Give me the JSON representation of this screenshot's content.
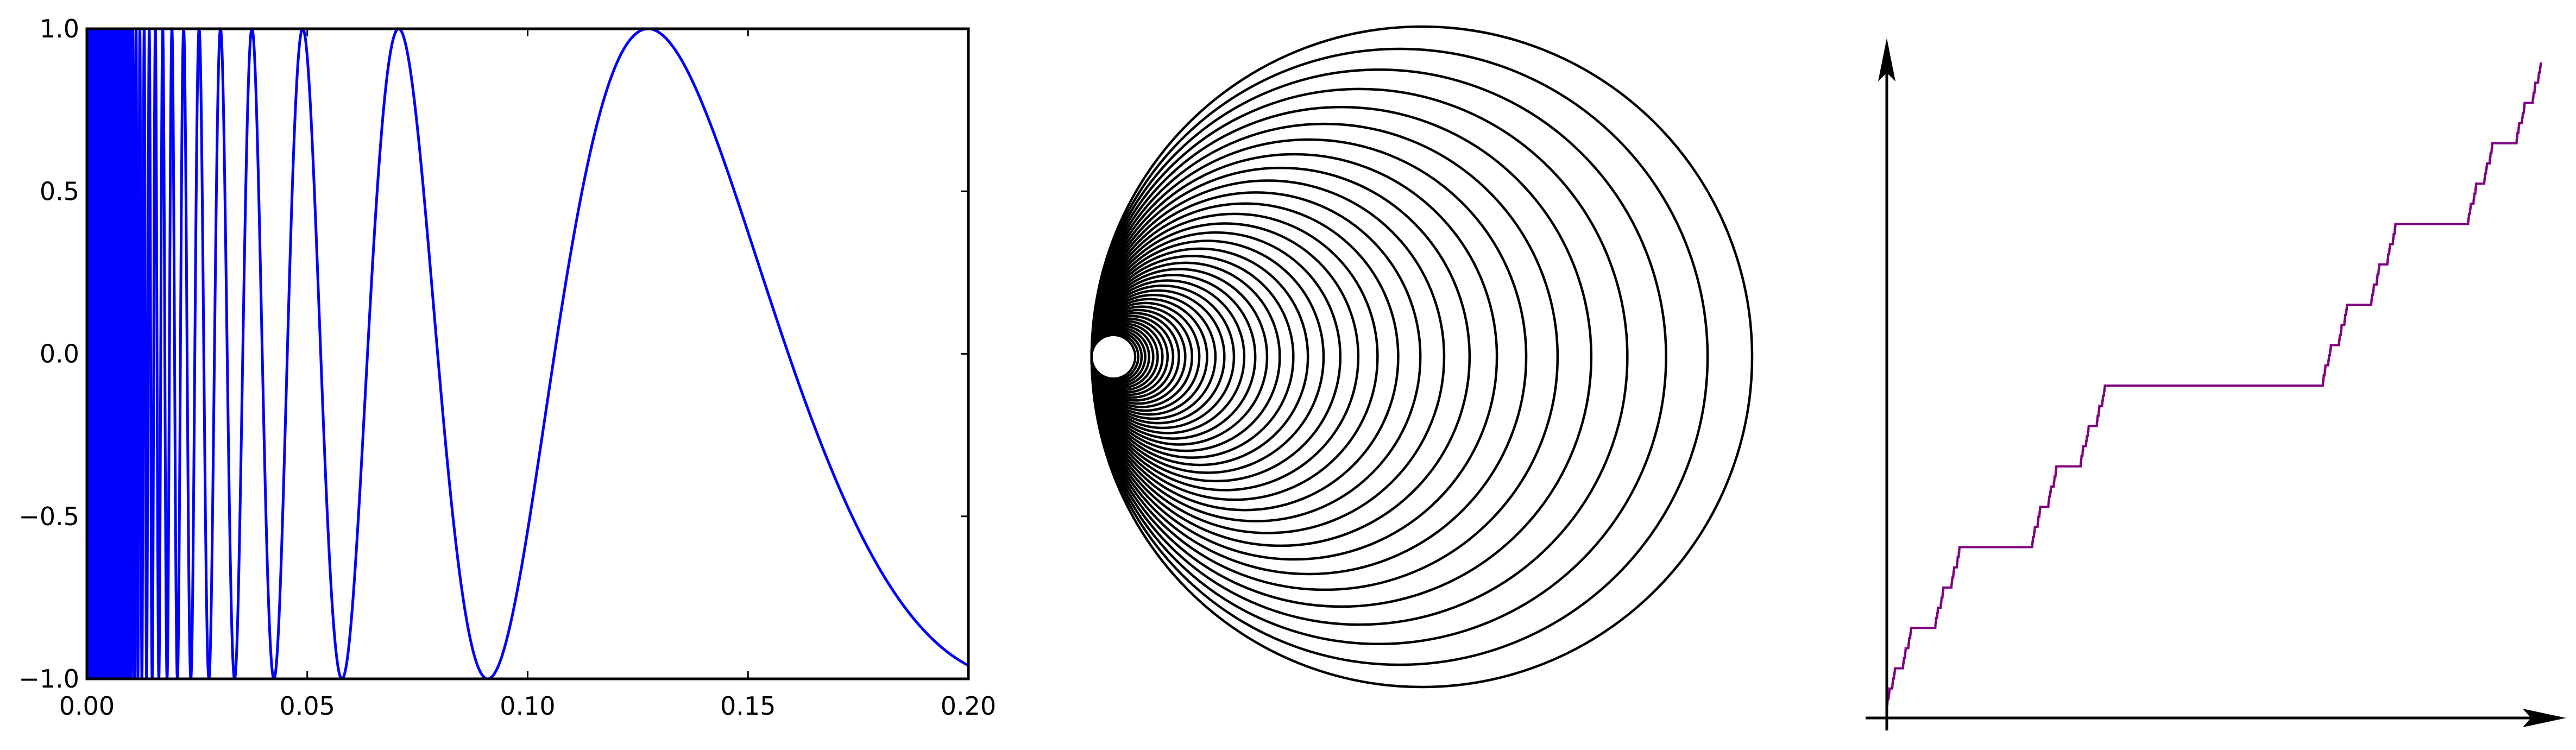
{
  "chart_data": [
    {
      "type": "line",
      "function": "sin(1/x)",
      "x_range": [
        0.0,
        0.2
      ],
      "xlim": [
        0.0,
        0.2
      ],
      "ylim": [
        -1.0,
        1.0
      ],
      "x_ticks": [
        "0.00",
        "0.05",
        "0.10",
        "0.15",
        "0.20"
      ],
      "y_ticks": [
        "−1.0",
        "−0.5",
        "0.0",
        "0.5",
        "1.0"
      ],
      "x_tick_values": [
        0.0,
        0.05,
        0.1,
        0.15,
        0.2
      ],
      "y_tick_values": [
        -1.0,
        -0.5,
        0.0,
        0.5,
        1.0
      ],
      "grid": false,
      "line_color": "#0000ff"
    },
    {
      "type": "diagram",
      "shape": "nested circles tangent at a common leftmost point, converging to a small filled white disk",
      "circle_count": 40,
      "stroke_color": "#000000"
    },
    {
      "type": "line",
      "function": "Cantor function (devil's staircase)",
      "axes": "arrow axes without ticks or labels",
      "line_color": "#800080"
    }
  ]
}
